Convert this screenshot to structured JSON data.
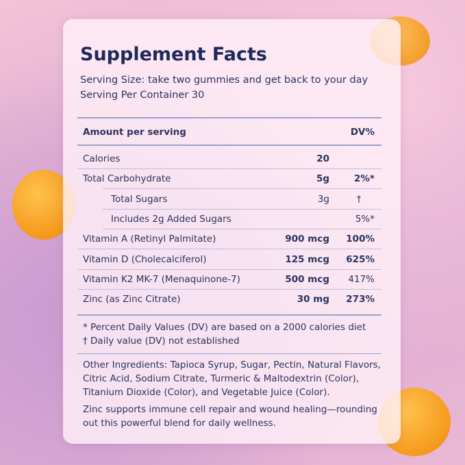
{
  "header": {
    "title": "Supplement Facts",
    "serving_size": "Serving Size: take two gummies and get back to your day",
    "servings": "Serving Per Container 30"
  },
  "table": {
    "columns": [
      "Amount per serving",
      "DV%"
    ],
    "rows": [
      {
        "name": "Calories",
        "amount": "20"
      },
      {
        "name": "Total Carbohydrate",
        "amount": "5g",
        "dv": "2%*"
      },
      {
        "name": "Total Sugars",
        "amount": "3g",
        "dv": "†"
      },
      {
        "name": "Includes 2g Added Sugars",
        "dv": "5%*"
      },
      {
        "name": "Vitamin A (Retinyl Palmitate)",
        "amount": "900 mcg",
        "dv": "100%"
      },
      {
        "name": "Vitamin D (Cholecalciferol)",
        "amount": "125 mcg",
        "dv": "625%"
      },
      {
        "name": "Vitamin K2 MK-7 (Menaquinone-7)",
        "amount": "500 mcg",
        "dv": "417%"
      },
      {
        "name": "Zinc (as Zinc Citrate)",
        "amount": "30 mg",
        "dv": "273%"
      }
    ]
  },
  "footnotes": [
    "* Percent Daily Values (DV) are based on a 2000 calories diet",
    "† Daily value (DV) not established"
  ],
  "ingredients": [
    "Other Ingredients: Tapioca Syrup, Sugar, Pectin, Natural Flavors,",
    "Citric Acid, Sodium Citrate, Turmeric & Maltodextrin (Color),",
    "Titanium Dioxide (Color), and Vegetable Juice (Color)."
  ],
  "note": [
    "Zinc supports immune cell repair and wound healing—rounding",
    "out this powerful blend for daily wellness."
  ]
}
